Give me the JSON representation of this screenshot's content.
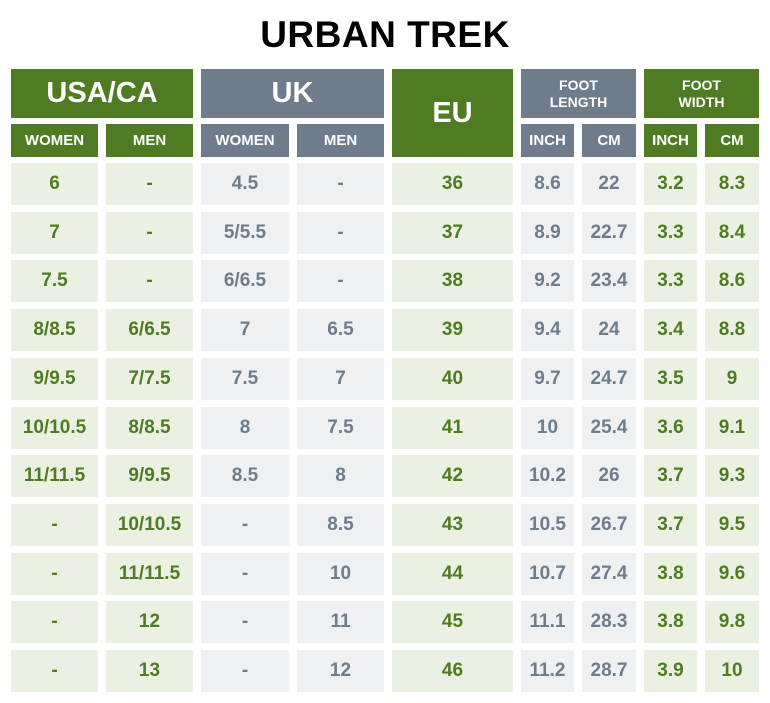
{
  "title": "URBAN TREK",
  "headers": {
    "usa_ca": "USA/CA",
    "uk": "UK",
    "eu": "EU",
    "foot_length": "FOOT LENGTH",
    "foot_width": "FOOT WIDTH",
    "women": "WOMEN",
    "men": "MEN",
    "inch": "INCH",
    "cm": "CM"
  },
  "rows": [
    [
      "6",
      "-",
      "4.5",
      "-",
      "36",
      "8.6",
      "22",
      "3.2",
      "8.3"
    ],
    [
      "7",
      "-",
      "5/5.5",
      "-",
      "37",
      "8.9",
      "22.7",
      "3.3",
      "8.4"
    ],
    [
      "7.5",
      "-",
      "6/6.5",
      "-",
      "38",
      "9.2",
      "23.4",
      "3.3",
      "8.6"
    ],
    [
      "8/8.5",
      "6/6.5",
      "7",
      "6.5",
      "39",
      "9.4",
      "24",
      "3.4",
      "8.8"
    ],
    [
      "9/9.5",
      "7/7.5",
      "7.5",
      "7",
      "40",
      "9.7",
      "24.7",
      "3.5",
      "9"
    ],
    [
      "10/10.5",
      "8/8.5",
      "8",
      "7.5",
      "41",
      "10",
      "25.4",
      "3.6",
      "9.1"
    ],
    [
      "11/11.5",
      "9/9.5",
      "8.5",
      "8",
      "42",
      "10.2",
      "26",
      "3.7",
      "9.3"
    ],
    [
      "-",
      "10/10.5",
      "-",
      "8.5",
      "43",
      "10.5",
      "26.7",
      "3.7",
      "9.5"
    ],
    [
      "-",
      "11/11.5",
      "-",
      "10",
      "44",
      "10.7",
      "27.4",
      "3.8",
      "9.6"
    ],
    [
      "-",
      "12",
      "-",
      "11",
      "45",
      "11.1",
      "28.3",
      "3.8",
      "9.8"
    ],
    [
      "-",
      "13",
      "-",
      "12",
      "46",
      "11.2",
      "28.7",
      "3.9",
      "10"
    ]
  ],
  "colors": {
    "green": "#4f7b23",
    "slate": "#6e7c8b",
    "green_bg": "#eaf1e2",
    "slate_bg": "#eef0f2"
  }
}
